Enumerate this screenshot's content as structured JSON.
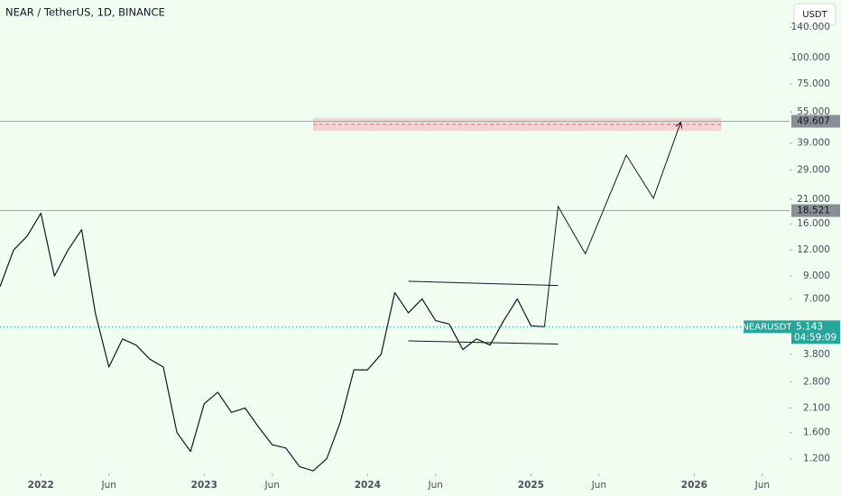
{
  "chart_data": {
    "type": "line",
    "title": "NEAR / TetherUS, 1D, BINANCE",
    "currency": "USDT",
    "log": true,
    "x": [
      "2021-10",
      "2021-11",
      "2021-12",
      "2022-01",
      "2022-02",
      "2022-03",
      "2022-04",
      "2022-05",
      "2022-06",
      "2022-07",
      "2022-08",
      "2022-09",
      "2022-10",
      "2022-11",
      "2022-12",
      "2023-01",
      "2023-02",
      "2023-03",
      "2023-04",
      "2023-05",
      "2023-06",
      "2023-07",
      "2023-08",
      "2023-09",
      "2023-10",
      "2023-11",
      "2023-12",
      "2024-01",
      "2024-02",
      "2024-03",
      "2024-04",
      "2024-05",
      "2024-06",
      "2024-07",
      "2024-08",
      "2024-09",
      "2024-10",
      "2024-11",
      "2024-12",
      "2025-01",
      "2025-02"
    ],
    "series": [
      {
        "name": "NEARUSDT",
        "color": "#131722",
        "values": [
          8,
          12,
          14,
          18,
          9,
          12,
          15,
          6,
          3.3,
          4.5,
          4.2,
          3.6,
          3.3,
          1.6,
          1.3,
          2.2,
          2.5,
          2.0,
          2.1,
          1.7,
          1.4,
          1.35,
          1.1,
          1.05,
          1.2,
          1.8,
          3.2,
          3.2,
          3.8,
          7.5,
          6,
          7,
          5.5,
          5.3,
          4.0,
          4.5,
          4.2,
          5.5,
          7.0,
          5.2,
          5.143
        ]
      }
    ],
    "last_price": 5.143,
    "countdown": "04:59:09",
    "ylim": [
      1.02,
      189
    ],
    "yticks": [
      {
        "value": 1.2,
        "label": "1.200"
      },
      {
        "value": 1.6,
        "label": "1.600"
      },
      {
        "value": 2.1,
        "label": "2.100"
      },
      {
        "value": 2.8,
        "label": "2.800"
      },
      {
        "value": 3.8,
        "label": "3.800"
      },
      {
        "value": 7,
        "label": "7.000"
      },
      {
        "value": 9,
        "label": "9.000"
      },
      {
        "value": 12,
        "label": "12.000"
      },
      {
        "value": 16,
        "label": "16.000"
      },
      {
        "value": 21,
        "label": "21.000"
      },
      {
        "value": 29,
        "label": "29.000"
      },
      {
        "value": 39,
        "label": "39.000"
      },
      {
        "value": 55,
        "label": "55.000"
      },
      {
        "value": 75,
        "label": "75.000"
      },
      {
        "value": 100,
        "label": "100.000"
      },
      {
        "value": 140,
        "label": "140.000"
      }
    ],
    "xlim": [
      "2021-10",
      "2026-08"
    ],
    "xticks": [
      {
        "value": "2022-01",
        "label": "2022"
      },
      {
        "value": "2022-06",
        "label": "Jun"
      },
      {
        "value": "2023-01",
        "label": "2023"
      },
      {
        "value": "2023-06",
        "label": "Jun"
      },
      {
        "value": "2024-01",
        "label": "2024"
      },
      {
        "value": "2024-06",
        "label": "Jun"
      },
      {
        "value": "2025-01",
        "label": "2025"
      },
      {
        "value": "2025-06",
        "label": "Jun"
      },
      {
        "value": "2026-01",
        "label": "2026"
      },
      {
        "value": "2026-06",
        "label": "Jun"
      }
    ],
    "levels": [
      49.607,
      18.521
    ],
    "zone": {
      "x": [
        "2023-09",
        "2026-03"
      ],
      "y": [
        44.6,
        51.5
      ],
      "color": "#f4cccc"
    },
    "channel": [
      {
        "x": [
          "2024-04",
          "2025-03"
        ],
        "y": [
          8.5,
          8.1
        ]
      },
      {
        "x": [
          "2024-04",
          "2025-03"
        ],
        "y": [
          4.4,
          4.25
        ]
      }
    ],
    "projection": {
      "x": [
        "2025-02",
        "2025-03",
        "2025-05",
        "2025-08",
        "2025-10",
        "2025-12"
      ],
      "y": [
        5.143,
        19.4,
        11.5,
        34.2,
        21.2,
        49
      ]
    }
  }
}
